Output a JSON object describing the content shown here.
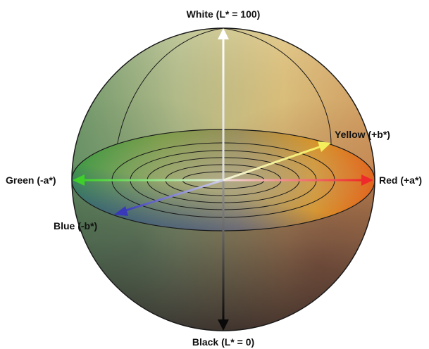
{
  "labels": {
    "white": "White (L* = 100)",
    "black": "Black (L* = 0)",
    "green": "Green (-a*)",
    "red": "Red (+a*)",
    "yellow": "Yellow (+b*)",
    "blue": "Blue (-b*)"
  },
  "colors": {
    "white_axis": "#ffffff",
    "black_axis": "#111111",
    "green_axis": "#3ecf2a",
    "red_axis": "#ee2a2a",
    "yellow_axis": "#f2ee6a",
    "blue_axis": "#4040c0",
    "outline": "#1a1a1a"
  }
}
